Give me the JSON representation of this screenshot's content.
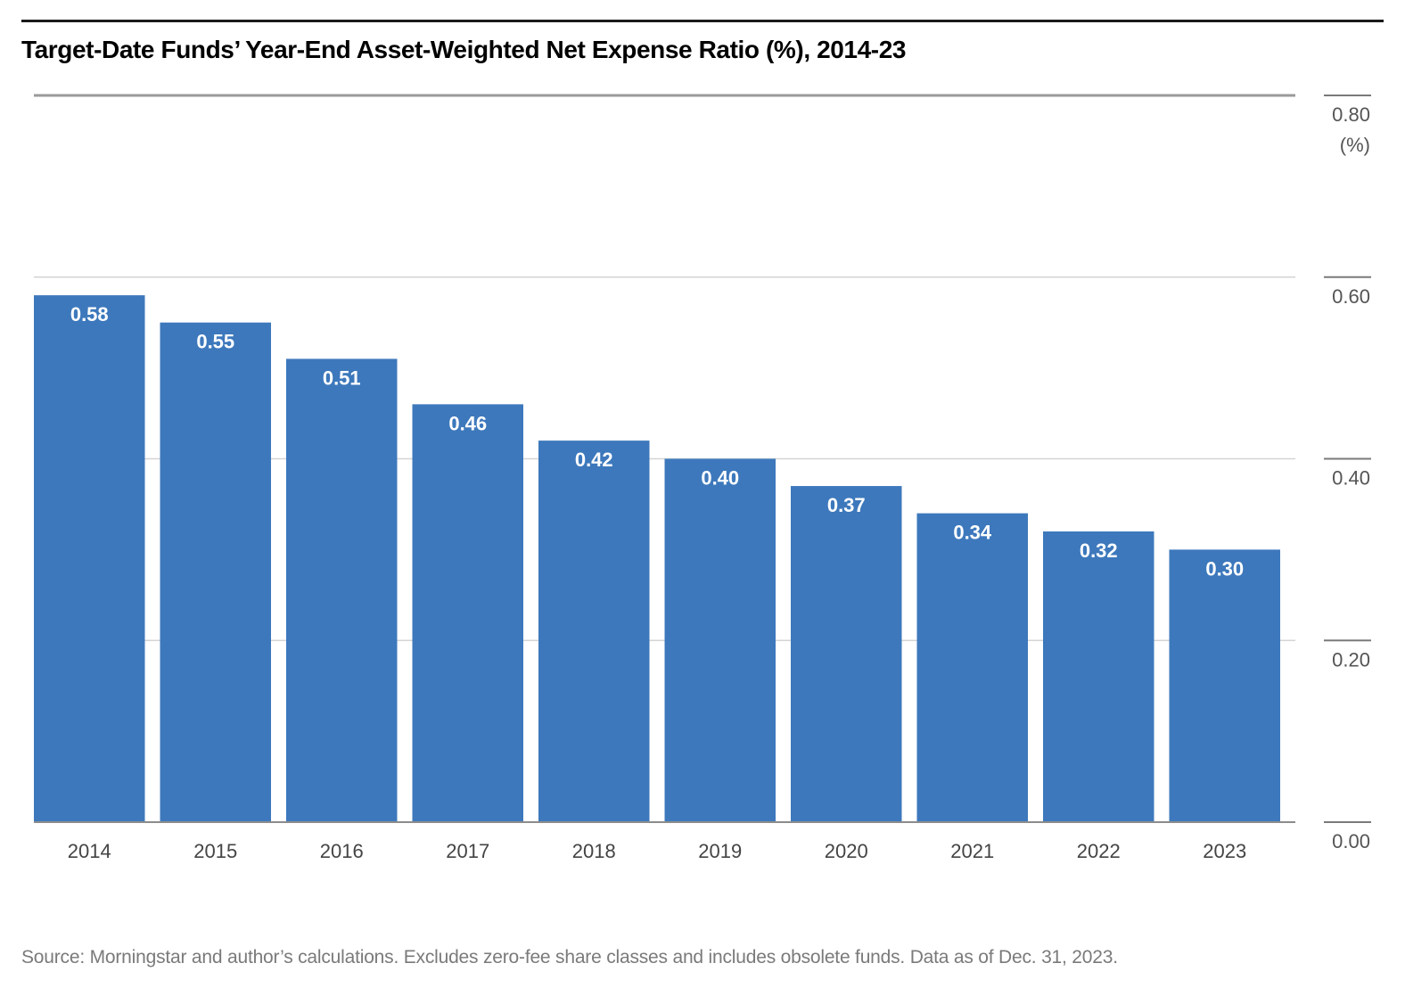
{
  "chart_data": {
    "type": "bar",
    "title": "Target-Date Funds’ Year-End Asset-Weighted Net Expense Ratio (%), 2014-23",
    "categories": [
      "2014",
      "2015",
      "2016",
      "2017",
      "2018",
      "2019",
      "2020",
      "2021",
      "2022",
      "2023"
    ],
    "values": [
      0.58,
      0.55,
      0.51,
      0.46,
      0.42,
      0.4,
      0.37,
      0.34,
      0.32,
      0.3
    ],
    "value_labels": [
      "0.58",
      "0.55",
      "0.51",
      "0.46",
      "0.42",
      "0.40",
      "0.37",
      "0.34",
      "0.32",
      "0.30"
    ],
    "y_ticks": [
      "0.00",
      "0.20",
      "0.40",
      "0.60",
      "0.80"
    ],
    "y_tick_values": [
      0.0,
      0.2,
      0.4,
      0.6,
      0.8
    ],
    "ylabel": "(%)",
    "xlabel": "",
    "ylim": [
      0,
      0.8
    ],
    "grid": true,
    "y_axis_side": "right",
    "bar_color": "#3d78bc",
    "source": "Source: Morningstar and author’s calculations. Excludes zero-fee share classes and includes obsolete funds. Data as of Dec. 31, 2023."
  }
}
